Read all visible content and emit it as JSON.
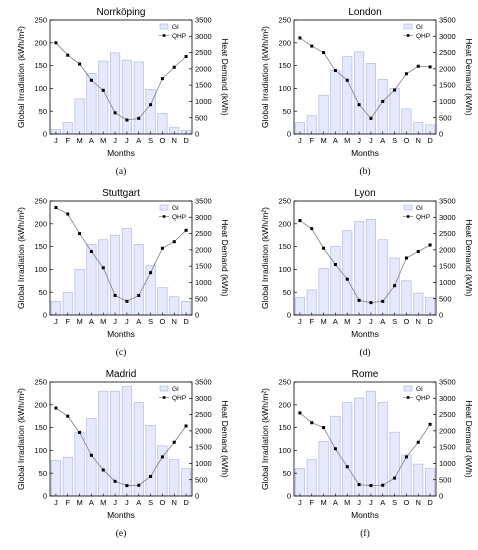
{
  "figure": {
    "colors": {
      "bar_fill": "#e6e9fb",
      "bar_stroke": "#a9b1e6",
      "line": "#808080",
      "marker": "#000000",
      "axis": "#000000"
    }
  },
  "chart_data": [
    {
      "type": "bar",
      "title": "Norrköping",
      "caption": "(a)",
      "categories": [
        "J",
        "F",
        "M",
        "A",
        "M",
        "J",
        "J",
        "A",
        "S",
        "O",
        "N",
        "D"
      ],
      "xlabel": "Months",
      "ylabel": "Global Irradiation (kWh/m²)",
      "y2label": "Heat Demand (kWh)",
      "ylim": [
        0,
        250
      ],
      "y2lim": [
        0,
        3500
      ],
      "yticks": [
        0,
        50,
        100,
        150,
        200,
        250
      ],
      "y2ticks": [
        0,
        500,
        1000,
        1500,
        2000,
        2500,
        3000,
        3500
      ],
      "legend": [
        "GI",
        "QHP"
      ],
      "legend_position": "top-right",
      "series": [
        {
          "name": "GI",
          "type": "bar",
          "axis": "left",
          "values": [
            10,
            25,
            77,
            133,
            160,
            178,
            162,
            158,
            98,
            45,
            15,
            8
          ]
        },
        {
          "name": "QHP",
          "type": "line",
          "axis": "right",
          "values": [
            2800,
            2420,
            2150,
            1650,
            1340,
            650,
            430,
            480,
            900,
            1700,
            2050,
            2380
          ]
        }
      ]
    },
    {
      "type": "bar",
      "title": "London",
      "caption": "(b)",
      "categories": [
        "J",
        "F",
        "M",
        "A",
        "M",
        "J",
        "J",
        "A",
        "S",
        "O",
        "N",
        "D"
      ],
      "xlabel": "Months",
      "ylabel": "Global Irradiation (kWh/m²)",
      "y2label": "Heat Demand (kWh)",
      "ylim": [
        0,
        250
      ],
      "y2lim": [
        0,
        3500
      ],
      "yticks": [
        0,
        50,
        100,
        150,
        200,
        250
      ],
      "y2ticks": [
        0,
        500,
        1000,
        1500,
        2000,
        2500,
        3000,
        3500
      ],
      "legend": [
        "GI",
        "QHP"
      ],
      "legend_position": "top-right",
      "series": [
        {
          "name": "GI",
          "type": "bar",
          "axis": "left",
          "values": [
            25,
            40,
            85,
            140,
            170,
            180,
            155,
            120,
            100,
            55,
            25,
            20
          ]
        },
        {
          "name": "QHP",
          "type": "line",
          "axis": "right",
          "values": [
            2950,
            2700,
            2500,
            1950,
            1650,
            900,
            480,
            1000,
            1350,
            1850,
            2080,
            2060
          ]
        }
      ]
    },
    {
      "type": "bar",
      "title": "Stuttgart",
      "caption": "(c)",
      "categories": [
        "J",
        "F",
        "M",
        "A",
        "M",
        "J",
        "J",
        "A",
        "S",
        "O",
        "N",
        "D"
      ],
      "xlabel": "Months",
      "ylabel": "Global Irradiation (kWh/m²)",
      "y2label": "Heat Demand (kWh)",
      "ylim": [
        0,
        250
      ],
      "y2lim": [
        0,
        3500
      ],
      "yticks": [
        0,
        50,
        100,
        150,
        200,
        250
      ],
      "y2ticks": [
        0,
        500,
        1000,
        1500,
        2000,
        2500,
        3000,
        3500
      ],
      "legend": [
        "GI",
        "QHP"
      ],
      "legend_position": "top-right",
      "series": [
        {
          "name": "GI",
          "type": "bar",
          "axis": "left",
          "values": [
            30,
            50,
            100,
            155,
            165,
            175,
            190,
            155,
            108,
            60,
            40,
            30
          ]
        },
        {
          "name": "QHP",
          "type": "line",
          "axis": "right",
          "values": [
            3300,
            3100,
            2500,
            1950,
            1450,
            600,
            420,
            600,
            1300,
            2050,
            2250,
            2600
          ]
        }
      ]
    },
    {
      "type": "bar",
      "title": "Lyon",
      "caption": "(d)",
      "categories": [
        "J",
        "F",
        "M",
        "A",
        "M",
        "J",
        "J",
        "A",
        "S",
        "O",
        "N",
        "D"
      ],
      "xlabel": "Months",
      "ylabel": "Global Irradiation (kWh/m²)",
      "y2label": "Heat Demand (kWh)",
      "ylim": [
        0,
        250
      ],
      "y2lim": [
        0,
        3500
      ],
      "yticks": [
        0,
        50,
        100,
        150,
        200,
        250
      ],
      "y2ticks": [
        0,
        500,
        1000,
        1500,
        2000,
        2500,
        3000,
        3500
      ],
      "legend": [
        "GI",
        "QHP"
      ],
      "legend_position": "top-right",
      "series": [
        {
          "name": "GI",
          "type": "bar",
          "axis": "left",
          "values": [
            38,
            55,
            102,
            150,
            185,
            205,
            210,
            165,
            125,
            75,
            48,
            38
          ]
        },
        {
          "name": "QHP",
          "type": "line",
          "axis": "right",
          "values": [
            2900,
            2650,
            2050,
            1550,
            1100,
            450,
            380,
            420,
            900,
            1750,
            1950,
            2150
          ]
        }
      ]
    },
    {
      "type": "bar",
      "title": "Madrid",
      "caption": "(e)",
      "categories": [
        "J",
        "F",
        "M",
        "A",
        "M",
        "J",
        "J",
        "A",
        "S",
        "O",
        "N",
        "D"
      ],
      "xlabel": "Months",
      "ylabel": "Global Irradiation (kWh/m²)",
      "y2label": "Heat Demand (kWh)",
      "ylim": [
        0,
        250
      ],
      "y2lim": [
        0,
        3500
      ],
      "yticks": [
        0,
        50,
        100,
        150,
        200,
        250
      ],
      "y2ticks": [
        0,
        500,
        1000,
        1500,
        2000,
        2500,
        3000,
        3500
      ],
      "legend": [
        "GI",
        "QHP"
      ],
      "legend_position": "top-right",
      "series": [
        {
          "name": "GI",
          "type": "bar",
          "axis": "left",
          "values": [
            78,
            85,
            140,
            170,
            230,
            230,
            240,
            205,
            155,
            110,
            80,
            60
          ]
        },
        {
          "name": "QHP",
          "type": "line",
          "axis": "right",
          "values": [
            2700,
            2450,
            1950,
            1250,
            800,
            450,
            320,
            330,
            600,
            1200,
            1650,
            2150
          ]
        }
      ]
    },
    {
      "type": "bar",
      "title": "Rome",
      "caption": "(f)",
      "categories": [
        "J",
        "F",
        "M",
        "A",
        "M",
        "J",
        "J",
        "A",
        "S",
        "O",
        "N",
        "D"
      ],
      "xlabel": "Months",
      "ylabel": "Global Irradiation (kWh/m²)",
      "y2label": "Heat Demand (kWh)",
      "ylim": [
        0,
        250
      ],
      "y2lim": [
        0,
        3500
      ],
      "yticks": [
        0,
        50,
        100,
        150,
        200,
        250
      ],
      "y2ticks": [
        0,
        500,
        1000,
        1500,
        2000,
        2500,
        3000,
        3500
      ],
      "legend": [
        "GI",
        "QHP"
      ],
      "legend_position": "top-right",
      "series": [
        {
          "name": "GI",
          "type": "bar",
          "axis": "left",
          "values": [
            60,
            80,
            120,
            175,
            205,
            215,
            230,
            205,
            140,
            90,
            70,
            60
          ]
        },
        {
          "name": "QHP",
          "type": "line",
          "axis": "right",
          "values": [
            2550,
            2250,
            2100,
            1450,
            900,
            350,
            320,
            330,
            550,
            1200,
            1650,
            2200
          ]
        }
      ]
    }
  ]
}
